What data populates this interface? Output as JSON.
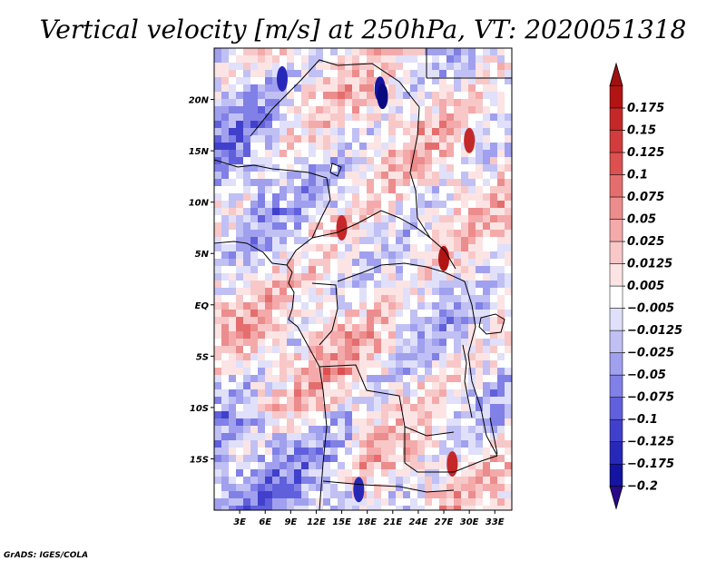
{
  "title": "Vertical velocity [m/s] at 250hPa, VT: 2020051318",
  "credit": "GrADS: IGES/COLA",
  "map": {
    "variable": "Vertical velocity",
    "units": "m/s",
    "level": "250hPa",
    "valid_time": "2020051318",
    "lat_labels": [
      "20N",
      "15N",
      "10N",
      "5N",
      "EQ",
      "5S",
      "10S",
      "15S"
    ],
    "lon_labels": [
      "3E",
      "6E",
      "9E",
      "12E",
      "15E",
      "18E",
      "21E",
      "24E",
      "27E",
      "30E",
      "33E"
    ],
    "lat_values": [
      20,
      15,
      10,
      5,
      0,
      -5,
      -10,
      -15
    ],
    "lon_values": [
      3,
      6,
      9,
      12,
      15,
      18,
      21,
      24,
      27,
      30,
      33
    ],
    "lat_range": [
      -20,
      25
    ],
    "lon_range": [
      0,
      35
    ]
  },
  "colorbar": {
    "labels": [
      "0.175",
      "0.15",
      "0.125",
      "0.1",
      "0.075",
      "0.05",
      "0.025",
      "0.0125",
      "0.005",
      "−0.005",
      "−0.0125",
      "−0.025",
      "−0.05",
      "−0.075",
      "−0.1",
      "−0.125",
      "−0.175",
      "−0.2"
    ],
    "colors": [
      "#b21414",
      "#c42828",
      "#d23c3c",
      "#dc5050",
      "#e46e6e",
      "#ec8c8c",
      "#f4aaaa",
      "#f8c8c8",
      "#fce4e4",
      "#ffffff",
      "#e0e0fa",
      "#c0c0f4",
      "#a0a0ee",
      "#8080e6",
      "#6060dc",
      "#4040cc",
      "#2828b8",
      "#1414a0",
      "#0a0a80"
    ],
    "top_color": "#a01010",
    "bottom_color": "#2a0a8a"
  },
  "palette": {
    "field_base": "#d8c8e8",
    "positive": "#e87878",
    "negative": "#8080e0"
  }
}
